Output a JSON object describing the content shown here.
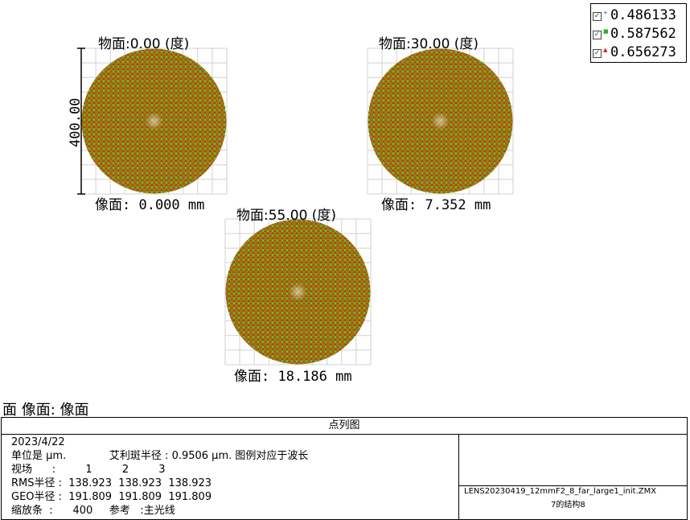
{
  "fields": [
    {
      "object_label": "物面:0.00 (度)",
      "image_label": "像面: 0.000 mm"
    },
    {
      "object_label": "物面:30.00 (度)",
      "image_label": "像面: 7.352 mm"
    },
    {
      "object_label": "物面:55.00 (度)",
      "image_label": "像面: 18.186 mm"
    }
  ],
  "scale_label": "400.00",
  "legend": [
    {
      "value": "0.486133",
      "color": "#1a3fa8",
      "icon": "plus-marker"
    },
    {
      "value": "0.587562",
      "color": "#2bb52b",
      "icon": "square-marker"
    },
    {
      "value": "0.656273",
      "color": "#d02020",
      "icon": "triangle-marker"
    }
  ],
  "colors": {
    "spot_fill": "#9a7a18",
    "green_marker": "#4fd020",
    "red_marker": "#cc2a10",
    "grid": "#d0d0d0"
  },
  "surface_title": "面 像面: 像面",
  "info": {
    "header": "点列图",
    "date": "2023/4/22",
    "units_line": "单位是 μm.             艾利斑半径 : 0.9506 μm. 图例对应于波长",
    "field_row": "视场      :         1         2         3",
    "rms_row": "RMS半径 :  138.923  138.923  138.923",
    "geo_row": "GEO半径 :  191.809  191.809  191.809",
    "scale_row": "缩放条  :      400     参考   :主光线",
    "file_name": "LENS20230419_12mmF2_8_far_large1_init.ZMX",
    "config": "7的结构8"
  }
}
